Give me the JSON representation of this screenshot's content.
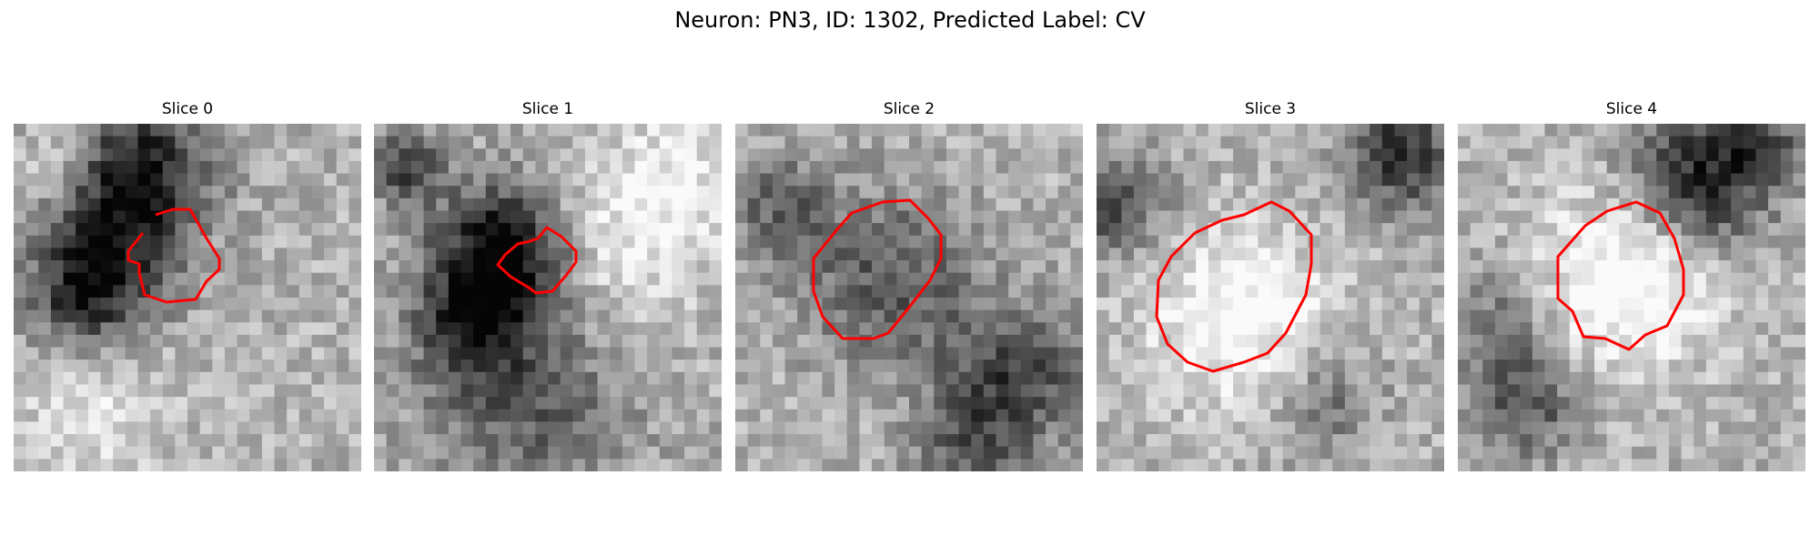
{
  "figure": {
    "title": "Neuron: PN3, ID: 1302, Predicted Label: CV"
  },
  "panels": [
    {
      "title": "Slice 0",
      "seed": 11,
      "contour_color": "#ff0000",
      "blobs": [
        [
          10,
          3,
          4,
          0.55
        ],
        [
          7,
          10,
          4,
          0.5
        ],
        [
          5,
          14,
          3,
          0.35
        ],
        [
          3,
          3,
          2,
          -0.2
        ],
        [
          6,
          22,
          4,
          -0.2
        ]
      ]
    },
    {
      "title": "Slice 1",
      "seed": 23,
      "contour_color": "#ff0000",
      "blobs": [
        [
          10,
          10,
          4,
          0.75
        ],
        [
          7,
          16,
          3,
          0.4
        ],
        [
          12,
          22,
          6,
          0.35
        ],
        [
          2,
          3,
          2,
          0.45
        ],
        [
          18,
          10,
          5,
          -0.25
        ],
        [
          24,
          4,
          4,
          -0.2
        ]
      ]
    },
    {
      "title": "Slice 2",
      "seed": 37,
      "contour_color": "#ff0000",
      "blobs": [
        [
          12,
          12,
          5,
          0.35
        ],
        [
          22,
          20,
          4,
          0.45
        ],
        [
          3,
          6,
          3,
          0.3
        ],
        [
          18,
          26,
          3,
          0.3
        ]
      ]
    },
    {
      "title": "Slice 3",
      "seed": 41,
      "contour_color": "#ff0000",
      "blobs": [
        [
          1,
          6,
          3,
          0.4
        ],
        [
          24,
          2,
          3,
          0.55
        ],
        [
          11,
          15,
          5,
          -0.35
        ],
        [
          18,
          22,
          3,
          0.25
        ]
      ]
    },
    {
      "title": "Slice 4",
      "seed": 53,
      "contour_color": "#ff0000",
      "blobs": [
        [
          13,
          12,
          5,
          -0.4
        ],
        [
          19,
          4,
          4,
          0.6
        ],
        [
          5,
          22,
          3,
          0.4
        ],
        [
          3,
          15,
          3,
          0.25
        ],
        [
          24,
          1,
          2,
          0.35
        ]
      ]
    }
  ]
}
